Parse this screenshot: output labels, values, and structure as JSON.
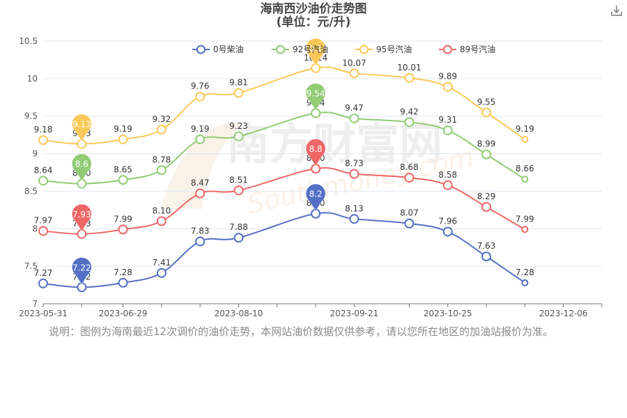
{
  "header": {
    "title": "海南西沙油价走势图",
    "subtitle": "(单位：元/升)"
  },
  "toolbar": {
    "download_icon": "download-icon"
  },
  "note": "说明：图例为海南最近12次调价的油价走势，本网站油价数据仅供参考，请以您所在地区的加油站报价为准。",
  "watermark": {
    "brand": "南方财富网",
    "domain": "Southmoney.com"
  },
  "colors": {
    "diesel0": "#5470c6",
    "gas92": "#91cc75",
    "gas95": "#fac858",
    "gas89": "#ee6666",
    "axis": "#6e7079",
    "grid": "#e0e6f1"
  },
  "chart_data": {
    "type": "line",
    "title": "海南西沙油价走势图",
    "subtitle": "(单位：元/升)",
    "xlabel": "",
    "ylabel": "",
    "ylim": [
      7,
      10.5
    ],
    "yticks": [
      "7",
      "7.5",
      "8",
      "8.5",
      "9",
      "9.5",
      "10",
      "10.5"
    ],
    "x": [
      "2023-05-31",
      "2023-06-14",
      "2023-06-29",
      "2023-07-13",
      "2023-07-27",
      "2023-08-10",
      "2023-08-24",
      "2023-09-07",
      "2023-09-21",
      "2023-10-11",
      "2023-10-25",
      "2023-11-08",
      "2023-11-22",
      "2023-12-06",
      "2023-12-20"
    ],
    "xtick_labels": [
      "2023-05-31",
      "2023-06-29",
      "2023-08-10",
      "2023-09-21",
      "2023-10-25",
      "2023-12-06"
    ],
    "legend_position": "top",
    "grid": true,
    "series": [
      {
        "name": "0号柴油",
        "color": "#5470c6",
        "points": [
          {
            "x": "2023-05-31",
            "y": 7.27,
            "label": "7.27"
          },
          {
            "x": "2023-06-14",
            "y": 7.22,
            "label": "7.22"
          },
          {
            "x": "2023-06-29",
            "y": 7.28,
            "label": "7.28"
          },
          {
            "x": "2023-07-13",
            "y": 7.41,
            "label": "7.41"
          },
          {
            "x": "2023-07-27",
            "y": 7.83,
            "label": "7.83"
          },
          {
            "x": "2023-08-10",
            "y": 7.88,
            "label": "7.88"
          },
          {
            "x": "2023-09-07",
            "y": 8.2,
            "label": "8.20"
          },
          {
            "x": "2023-09-21",
            "y": 8.13,
            "label": "8.13"
          },
          {
            "x": "2023-10-11",
            "y": 8.07,
            "label": "8.07"
          },
          {
            "x": "2023-10-25",
            "y": 7.96,
            "label": "7.96"
          },
          {
            "x": "2023-11-08",
            "y": 7.63,
            "label": "7.63"
          },
          {
            "x": "2023-11-22",
            "y": 7.28,
            "label": "7.28"
          }
        ],
        "markers": [
          {
            "type": "min",
            "label": "7.22",
            "index": 1
          },
          {
            "type": "max",
            "label": "8.2",
            "index": 6
          }
        ]
      },
      {
        "name": "92号汽油",
        "color": "#91cc75",
        "points": [
          {
            "x": "2023-05-31",
            "y": 8.64,
            "label": "8.64"
          },
          {
            "x": "2023-06-14",
            "y": 8.6,
            "label": "8.60"
          },
          {
            "x": "2023-06-29",
            "y": 8.65,
            "label": "8.65"
          },
          {
            "x": "2023-07-13",
            "y": 8.78,
            "label": "8.78"
          },
          {
            "x": "2023-07-27",
            "y": 9.19,
            "label": "9.19"
          },
          {
            "x": "2023-08-10",
            "y": 9.23,
            "label": "9.23"
          },
          {
            "x": "2023-09-07",
            "y": 9.54,
            "label": "9.54"
          },
          {
            "x": "2023-09-21",
            "y": 9.47,
            "label": "9.47"
          },
          {
            "x": "2023-10-11",
            "y": 9.42,
            "label": "9.42"
          },
          {
            "x": "2023-10-25",
            "y": 9.31,
            "label": "9.31"
          },
          {
            "x": "2023-11-08",
            "y": 8.99,
            "label": "8.99"
          },
          {
            "x": "2023-11-22",
            "y": 8.66,
            "label": "8.66"
          }
        ],
        "markers": [
          {
            "type": "min",
            "label": "8.6",
            "index": 1
          },
          {
            "type": "max",
            "label": "9.54",
            "index": 6
          }
        ]
      },
      {
        "name": "95号汽油",
        "color": "#fac858",
        "points": [
          {
            "x": "2023-05-31",
            "y": 9.18,
            "label": "9.18"
          },
          {
            "x": "2023-06-14",
            "y": 9.13,
            "label": "9.13"
          },
          {
            "x": "2023-06-29",
            "y": 9.19,
            "label": "9.19"
          },
          {
            "x": "2023-07-13",
            "y": 9.32,
            "label": "9.32"
          },
          {
            "x": "2023-07-27",
            "y": 9.76,
            "label": "9.76"
          },
          {
            "x": "2023-08-10",
            "y": 9.81,
            "label": "9.81"
          },
          {
            "x": "2023-09-07",
            "y": 10.14,
            "label": "10.14"
          },
          {
            "x": "2023-09-21",
            "y": 10.07,
            "label": "10.07"
          },
          {
            "x": "2023-10-11",
            "y": 10.01,
            "label": "10.01"
          },
          {
            "x": "2023-10-25",
            "y": 9.89,
            "label": "9.89"
          },
          {
            "x": "2023-11-08",
            "y": 9.55,
            "label": "9.55"
          },
          {
            "x": "2023-11-22",
            "y": 9.19,
            "label": "9.19"
          }
        ],
        "markers": [
          {
            "type": "min",
            "label": "9.13",
            "index": 1
          },
          {
            "type": "max",
            "label": "10.14",
            "index": 6
          }
        ]
      },
      {
        "name": "89号汽油",
        "color": "#ee6666",
        "points": [
          {
            "x": "2023-05-31",
            "y": 7.97,
            "label": "7.97"
          },
          {
            "x": "2023-06-14",
            "y": 7.93,
            "label": "7.93"
          },
          {
            "x": "2023-06-29",
            "y": 7.99,
            "label": "7.99"
          },
          {
            "x": "2023-07-13",
            "y": 8.1,
            "label": "8.10"
          },
          {
            "x": "2023-07-27",
            "y": 8.47,
            "label": "8.47"
          },
          {
            "x": "2023-08-10",
            "y": 8.51,
            "label": "8.51"
          },
          {
            "x": "2023-09-07",
            "y": 8.8,
            "label": "8.80"
          },
          {
            "x": "2023-09-21",
            "y": 8.73,
            "label": "8.73"
          },
          {
            "x": "2023-10-11",
            "y": 8.68,
            "label": "8.68"
          },
          {
            "x": "2023-10-25",
            "y": 8.58,
            "label": "8.58"
          },
          {
            "x": "2023-11-08",
            "y": 8.29,
            "label": "8.29"
          },
          {
            "x": "2023-11-22",
            "y": 7.99,
            "label": "7.99"
          }
        ],
        "markers": [
          {
            "type": "min",
            "label": "7.93",
            "index": 1
          },
          {
            "type": "max",
            "label": "8.8",
            "index": 6
          }
        ]
      }
    ]
  }
}
